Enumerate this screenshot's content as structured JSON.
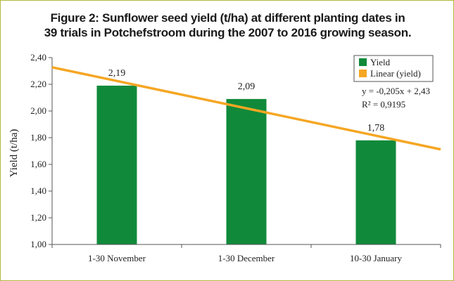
{
  "title": {
    "line1": "Figure 2: Sunflower seed yield (t/ha) at different planting dates in",
    "line2": "39 trials in Potchefstroom during the 2007 to 2016 growing season."
  },
  "colors": {
    "bar": "#108a3a",
    "trend": "#f5a623",
    "border": "#b5b83c",
    "grid": "#cccccc"
  },
  "chart_data": {
    "type": "bar",
    "categories": [
      "1-30 November",
      "1-30 December",
      "10-30 January"
    ],
    "series": [
      {
        "name": "Yield",
        "values": [
          2.19,
          2.09,
          1.78
        ],
        "labels": [
          "2,19",
          "2,09",
          "1,78"
        ]
      }
    ],
    "trendline": {
      "name": "Linear (yield)",
      "slope": -0.205,
      "intercept": 2.43,
      "equation": "y = -0,205x + 2,43",
      "r2": "R² = 0,9195"
    },
    "ylabel": "Yield (t/ha)",
    "xlabel": "",
    "ylim": [
      1.0,
      2.4
    ],
    "yticks": [
      1.0,
      1.2,
      1.4,
      1.6,
      1.8,
      2.0,
      2.2,
      2.4
    ],
    "ytick_labels": [
      "1,00",
      "1,20",
      "1,40",
      "1,60",
      "1,80",
      "2,00",
      "2,20",
      "2,40"
    ],
    "grid": false,
    "legend": "top-right"
  }
}
